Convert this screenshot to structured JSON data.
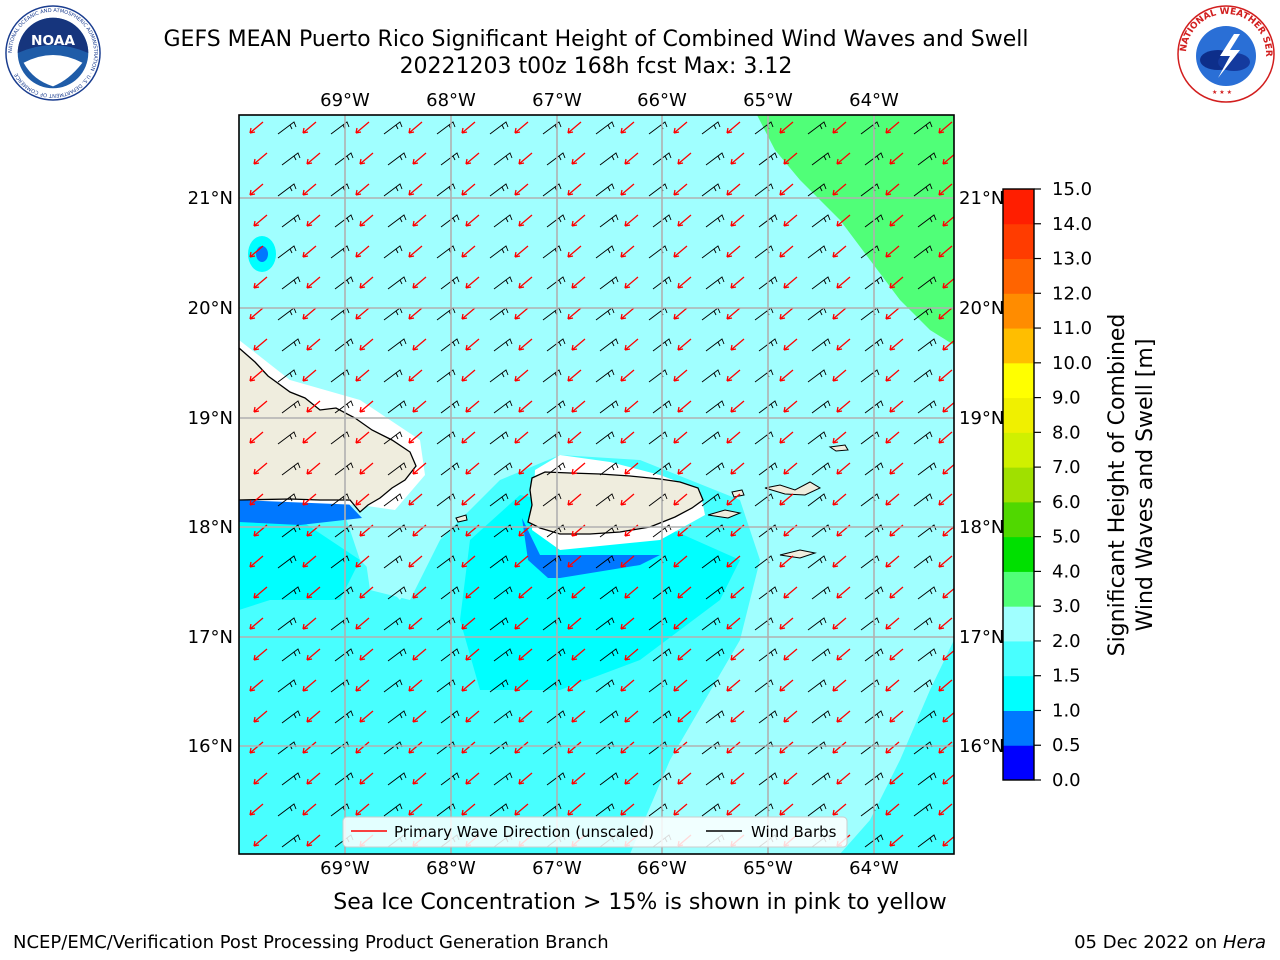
{
  "header": {
    "title_line1": "GEFS MEAN Puerto Rico Significant Height of Combined Wind Waves and Swell",
    "title_line2": "20221203 t00z 168h fcst   Max: 3.12"
  },
  "logos": {
    "noaa": {
      "name": "noaa-logo",
      "text": "NOAA",
      "ring_text": "NATIONAL OCEANIC AND ATMOSPHERIC ADMINISTRATION · U.S. DEPARTMENT OF COMMERCE"
    },
    "nws": {
      "name": "nws-logo",
      "ring_text": "NATIONAL WEATHER SERVICE"
    }
  },
  "map": {
    "lon_labels": [
      "69°W",
      "68°W",
      "67°W",
      "66°W",
      "65°W",
      "64°W"
    ],
    "lat_labels": [
      "21°N",
      "20°N",
      "19°N",
      "18°N",
      "17°N",
      "16°N"
    ],
    "legend": {
      "wave_direction": "Primary Wave Direction (unscaled)",
      "wind_barbs": "Wind Barbs"
    },
    "colors": {
      "land": "#efedde",
      "wave_arrow": "#ff0000",
      "barb": "#000000",
      "grid": "#b0b0b0"
    }
  },
  "colorbar": {
    "label_line1": "Significant Height of Combined",
    "label_line2": "Wind Waves and Swell [m]",
    "ticks": [
      "0.0",
      "0.5",
      "1.0",
      "1.5",
      "2.0",
      "3.0",
      "4.0",
      "5.0",
      "6.0",
      "7.0",
      "8.0",
      "9.0",
      "10.0",
      "11.0",
      "12.0",
      "13.0",
      "14.0",
      "15.0"
    ],
    "colors": [
      "#0000ff",
      "#0078ff",
      "#00ffff",
      "#48ffff",
      "#a0ffff",
      "#50ff78",
      "#00e000",
      "#50d800",
      "#a0e000",
      "#d0f000",
      "#f0f000",
      "#ffff00",
      "#ffbe00",
      "#ff8c00",
      "#ff6400",
      "#ff3c00",
      "#ff1e00"
    ]
  },
  "footer": {
    "note": "Sea Ice Concentration > 15% is shown in pink to yellow",
    "credit": "NCEP/EMC/Verification Post Processing Product Generation Branch",
    "date": "05 Dec 2022 on ",
    "machine": "Hera"
  }
}
